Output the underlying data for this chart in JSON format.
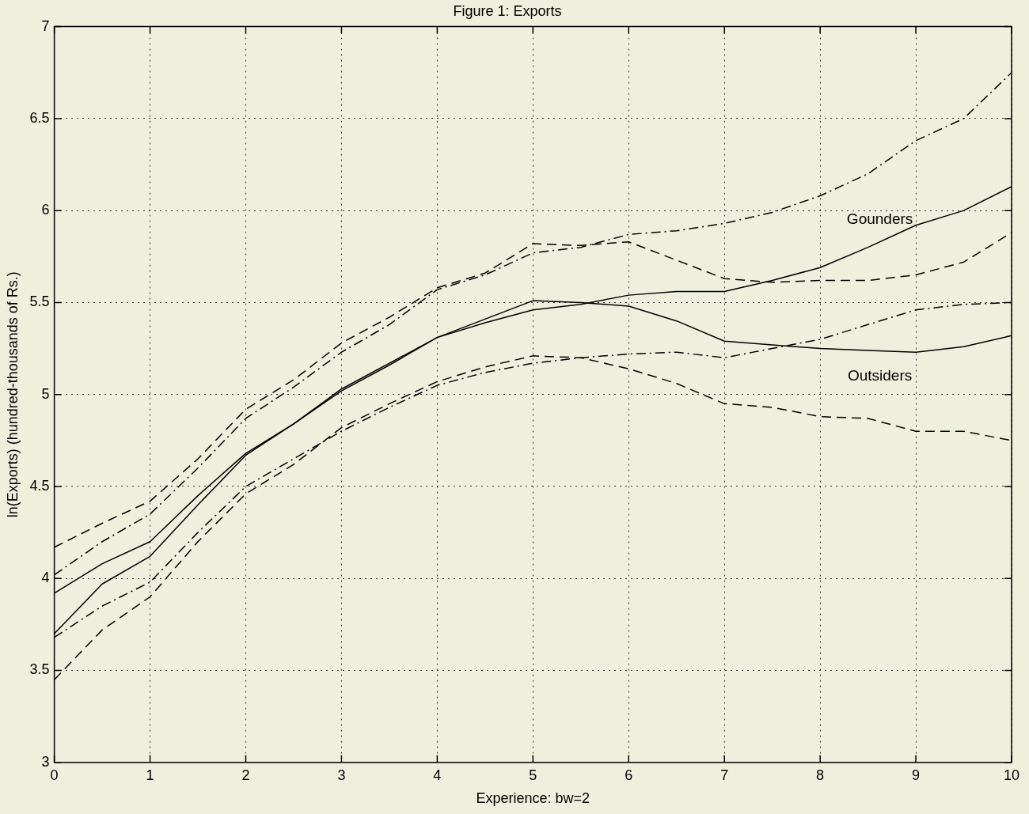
{
  "chart_data": {
    "type": "line",
    "title": "Figure 1: Exports",
    "xlabel": "Experience: bw=2",
    "ylabel": "ln(Exports) (hundred-thousands of Rs.)",
    "x": [
      0,
      0.5,
      1,
      1.5,
      2,
      2.5,
      3,
      3.5,
      4,
      4.5,
      5,
      5.5,
      6,
      6.5,
      7,
      7.5,
      8,
      8.5,
      9,
      9.5,
      10
    ],
    "series": [
      {
        "name": "Gounders",
        "color": "#000000",
        "line_style": "solid",
        "values": [
          3.92,
          4.08,
          4.2,
          4.45,
          4.68,
          4.84,
          5.02,
          5.16,
          5.31,
          5.39,
          5.46,
          5.49,
          5.54,
          5.56,
          5.56,
          5.62,
          5.69,
          5.8,
          5.92,
          6.0,
          6.13
        ]
      },
      {
        "color": "#000000",
        "line_style": "dashdot",
        "values": [
          4.02,
          4.2,
          4.35,
          4.6,
          4.87,
          5.04,
          5.23,
          5.38,
          5.57,
          5.65,
          5.77,
          5.8,
          5.87,
          5.89,
          5.93,
          5.99,
          6.08,
          6.2,
          6.38,
          6.5,
          6.75
        ]
      },
      {
        "color": "#000000",
        "line_style": "dashdot",
        "values": [
          3.68,
          3.85,
          3.98,
          4.25,
          4.5,
          4.65,
          4.8,
          4.93,
          5.05,
          5.12,
          5.17,
          5.2,
          5.22,
          5.23,
          5.2,
          5.25,
          5.3,
          5.38,
          5.46,
          5.49,
          5.5
        ]
      },
      {
        "name": "Outsiders",
        "color": "#000000",
        "line_style": "solid",
        "values": [
          3.7,
          3.97,
          4.12,
          4.4,
          4.67,
          4.84,
          5.03,
          5.17,
          5.31,
          5.41,
          5.51,
          5.5,
          5.48,
          5.4,
          5.29,
          5.27,
          5.25,
          5.24,
          5.23,
          5.26,
          5.32
        ]
      },
      {
        "color": "#000000",
        "line_style": "dashed",
        "values": [
          4.17,
          4.3,
          4.42,
          4.65,
          4.92,
          5.08,
          5.28,
          5.42,
          5.58,
          5.66,
          5.82,
          5.81,
          5.83,
          5.73,
          5.63,
          5.61,
          5.62,
          5.62,
          5.65,
          5.72,
          5.88
        ]
      },
      {
        "color": "#000000",
        "line_style": "dashed",
        "values": [
          3.45,
          3.72,
          3.9,
          4.2,
          4.46,
          4.62,
          4.82,
          4.95,
          5.07,
          5.15,
          5.21,
          5.2,
          5.14,
          5.06,
          4.95,
          4.93,
          4.88,
          4.87,
          4.8,
          4.8,
          4.75
        ]
      }
    ],
    "xlim": [
      0,
      10
    ],
    "xticks": [
      0,
      1,
      2,
      3,
      4,
      5,
      6,
      7,
      8,
      9,
      10
    ],
    "ylim": [
      3,
      7
    ],
    "yticks": [
      3,
      3.5,
      4,
      4.5,
      5,
      5.5,
      6,
      6.5,
      7
    ],
    "grid": true,
    "legend": false,
    "marker": "none"
  }
}
